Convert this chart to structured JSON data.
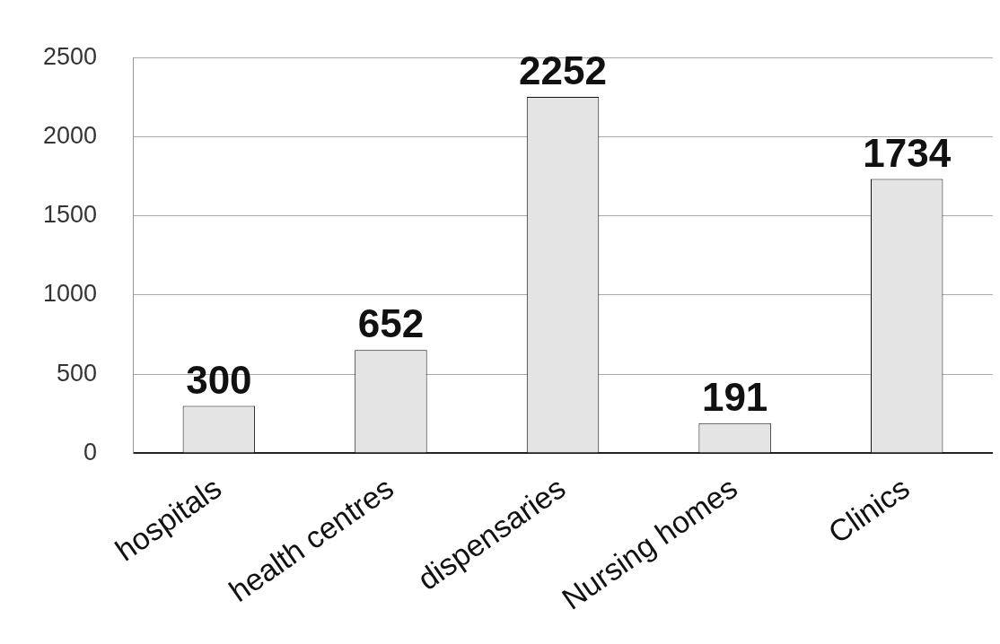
{
  "chart_data": {
    "type": "bar",
    "categories": [
      "hospitals",
      "health centres",
      "dispensaries",
      "Nursing homes",
      "Clinics"
    ],
    "values": [
      300,
      652,
      2252,
      191,
      1734
    ],
    "color": "#e4e4e4",
    "ylim": [
      0,
      2500
    ],
    "yticks": [
      0,
      500,
      1000,
      1500,
      2000,
      2500
    ],
    "grid": "y",
    "data_labels": true
  }
}
